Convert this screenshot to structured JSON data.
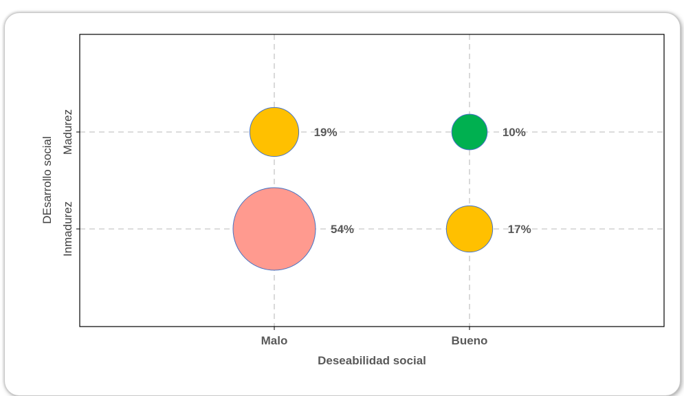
{
  "chart_data": {
    "type": "scatter",
    "subtype": "bubble",
    "xlabel": "Deseabilidad social",
    "ylabel": "DEsarrollo social",
    "x_categories": [
      "Malo",
      "Bueno"
    ],
    "y_categories": [
      "Inmadurez",
      "Madurez"
    ],
    "grid": true,
    "points": [
      {
        "x": "Malo",
        "y": "Madurez",
        "value": 19,
        "label": "19%",
        "color": "#FFC000"
      },
      {
        "x": "Bueno",
        "y": "Madurez",
        "value": 10,
        "label": "10%",
        "color": "#00B050"
      },
      {
        "x": "Malo",
        "y": "Inmadurez",
        "value": 54,
        "label": "54%",
        "color": "#FF9A8F"
      },
      {
        "x": "Bueno",
        "y": "Inmadurez",
        "value": 17,
        "label": "17%",
        "color": "#FFC000"
      }
    ],
    "bubble_outline_color": "#4472C4",
    "grid_color": "#D0D0D0",
    "frame_color": "#000000"
  }
}
